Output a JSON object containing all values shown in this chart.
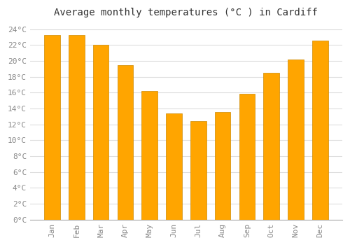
{
  "title": "Average monthly temperatures (°C ) in Cardiff",
  "months": [
    "Jan",
    "Feb",
    "Mar",
    "Apr",
    "May",
    "Jun",
    "Jul",
    "Aug",
    "Sep",
    "Oct",
    "Nov",
    "Dec"
  ],
  "values": [
    23.3,
    23.3,
    22.0,
    19.5,
    16.2,
    13.4,
    12.4,
    13.6,
    15.9,
    18.5,
    20.2,
    22.6
  ],
  "bar_color": "#FFA500",
  "bar_edge_color": "#CC8800",
  "background_color": "#FFFFFF",
  "grid_color": "#DDDDDD",
  "ylim": [
    0,
    25
  ],
  "ytick_step": 2,
  "title_fontsize": 10,
  "tick_fontsize": 8,
  "tick_color": "#888888",
  "font_family": "monospace"
}
